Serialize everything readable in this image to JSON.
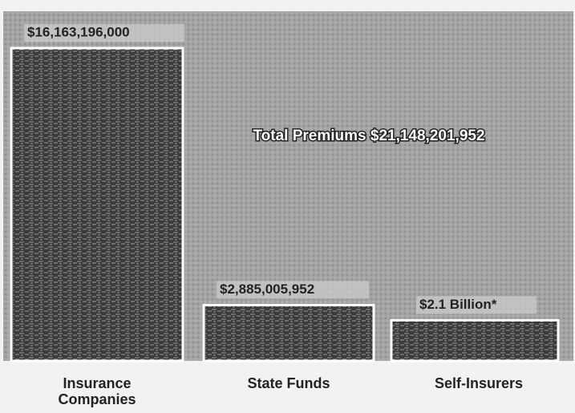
{
  "chart_data": {
    "type": "bar",
    "annotation": "Total Premiums $21,148,201,952",
    "categories": [
      "Insurance Companies",
      "State Funds",
      "Self-Insurers"
    ],
    "values": [
      16163196000,
      2885005952,
      2100000000
    ],
    "value_labels": [
      "$16,163,196,000",
      "$2,885,005,952",
      "$2.1 Billion*"
    ],
    "color": "#3a3a3a"
  }
}
